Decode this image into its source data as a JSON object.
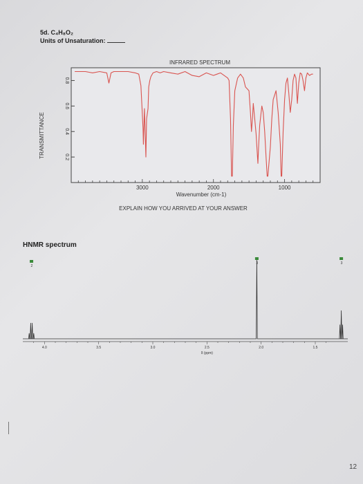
{
  "problem": {
    "title": "5d. C₄H₈O₂",
    "unsaturation_label": "Units of Unsaturation:"
  },
  "chart_data": [
    {
      "type": "line",
      "title": "INFRARED SPECTRUM",
      "xlabel": "Wavenumber (cm-1)",
      "ylabel": "TRANSMITTANCE",
      "xlim": [
        4000,
        500
      ],
      "ylim": [
        0,
        0.9
      ],
      "x_ticks": [
        "3000",
        "2000",
        "1000"
      ],
      "x_tick_values": [
        3000,
        2000,
        1000
      ],
      "y_ticks": [
        "0.8",
        "0.6",
        "0.4",
        "0.2"
      ],
      "y_tick_values": [
        0.8,
        0.6,
        0.4,
        0.2
      ],
      "grid": false,
      "color": "#d9534f",
      "series": [
        {
          "x": [
            3950,
            3800,
            3700,
            3600,
            3500,
            3470,
            3440,
            3400,
            3300,
            3200,
            3100,
            3050,
            3020,
            2990,
            2985,
            2970,
            2950,
            2940,
            2920,
            2910,
            2895,
            2880,
            2850,
            2800,
            2750,
            2700,
            2600,
            2500,
            2400,
            2300,
            2200,
            2100,
            2000,
            1950,
            1900,
            1850,
            1800,
            1780,
            1760,
            1745,
            1740,
            1735,
            1720,
            1700,
            1660,
            1620,
            1580,
            1550,
            1500,
            1480,
            1465,
            1450,
            1440,
            1420,
            1400,
            1390,
            1375,
            1365,
            1350,
            1320,
            1300,
            1280,
            1260,
            1245,
            1240,
            1235,
            1200,
            1180,
            1160,
            1120,
            1090,
            1060,
            1048,
            1045,
            1040,
            1020,
            1000,
            980,
            960,
            940,
            920,
            900,
            880,
            860,
            840,
            820,
            800,
            780,
            760,
            740,
            720,
            700,
            680,
            650,
            620,
            600
          ],
          "y": [
            0.87,
            0.87,
            0.86,
            0.87,
            0.86,
            0.78,
            0.86,
            0.87,
            0.87,
            0.87,
            0.86,
            0.85,
            0.76,
            0.42,
            0.3,
            0.58,
            0.2,
            0.5,
            0.58,
            0.75,
            0.8,
            0.83,
            0.86,
            0.87,
            0.86,
            0.87,
            0.86,
            0.85,
            0.87,
            0.84,
            0.83,
            0.86,
            0.84,
            0.85,
            0.86,
            0.84,
            0.82,
            0.8,
            0.5,
            0.05,
            0.05,
            0.05,
            0.45,
            0.72,
            0.82,
            0.85,
            0.82,
            0.75,
            0.72,
            0.55,
            0.4,
            0.52,
            0.62,
            0.5,
            0.38,
            0.28,
            0.15,
            0.28,
            0.45,
            0.6,
            0.55,
            0.4,
            0.2,
            0.05,
            0.05,
            0.05,
            0.28,
            0.5,
            0.65,
            0.72,
            0.55,
            0.3,
            0.05,
            0.05,
            0.05,
            0.4,
            0.65,
            0.78,
            0.82,
            0.7,
            0.55,
            0.65,
            0.8,
            0.85,
            0.82,
            0.62,
            0.78,
            0.86,
            0.85,
            0.8,
            0.72,
            0.82,
            0.86,
            0.84,
            0.85,
            0.85
          ]
        }
      ]
    },
    {
      "type": "line",
      "title": "HNMR spectrum",
      "xlabel": "δ (ppm)",
      "xlim": [
        4.2,
        1.2
      ],
      "ylim": [
        0,
        1
      ],
      "x_ticks": [
        "4.0",
        "3.5",
        "3.0",
        "2.5",
        "2.0",
        "1.5"
      ],
      "x_tick_values": [
        4.0,
        3.5,
        3.0,
        2.5,
        2.0,
        1.5
      ],
      "integration_labels": [
        "2",
        "3",
        "3"
      ],
      "peaks": [
        {
          "delta": 4.12,
          "height": 0.18,
          "multiplicity": "quartet"
        },
        {
          "delta": 2.04,
          "height": 0.92,
          "multiplicity": "singlet"
        },
        {
          "delta": 1.26,
          "height": 0.32,
          "multiplicity": "triplet"
        }
      ]
    }
  ],
  "ui": {
    "watermark": "EXPLAIN HOW YOU ARRIVED AT YOUR ANSWER",
    "page_number": "12"
  }
}
